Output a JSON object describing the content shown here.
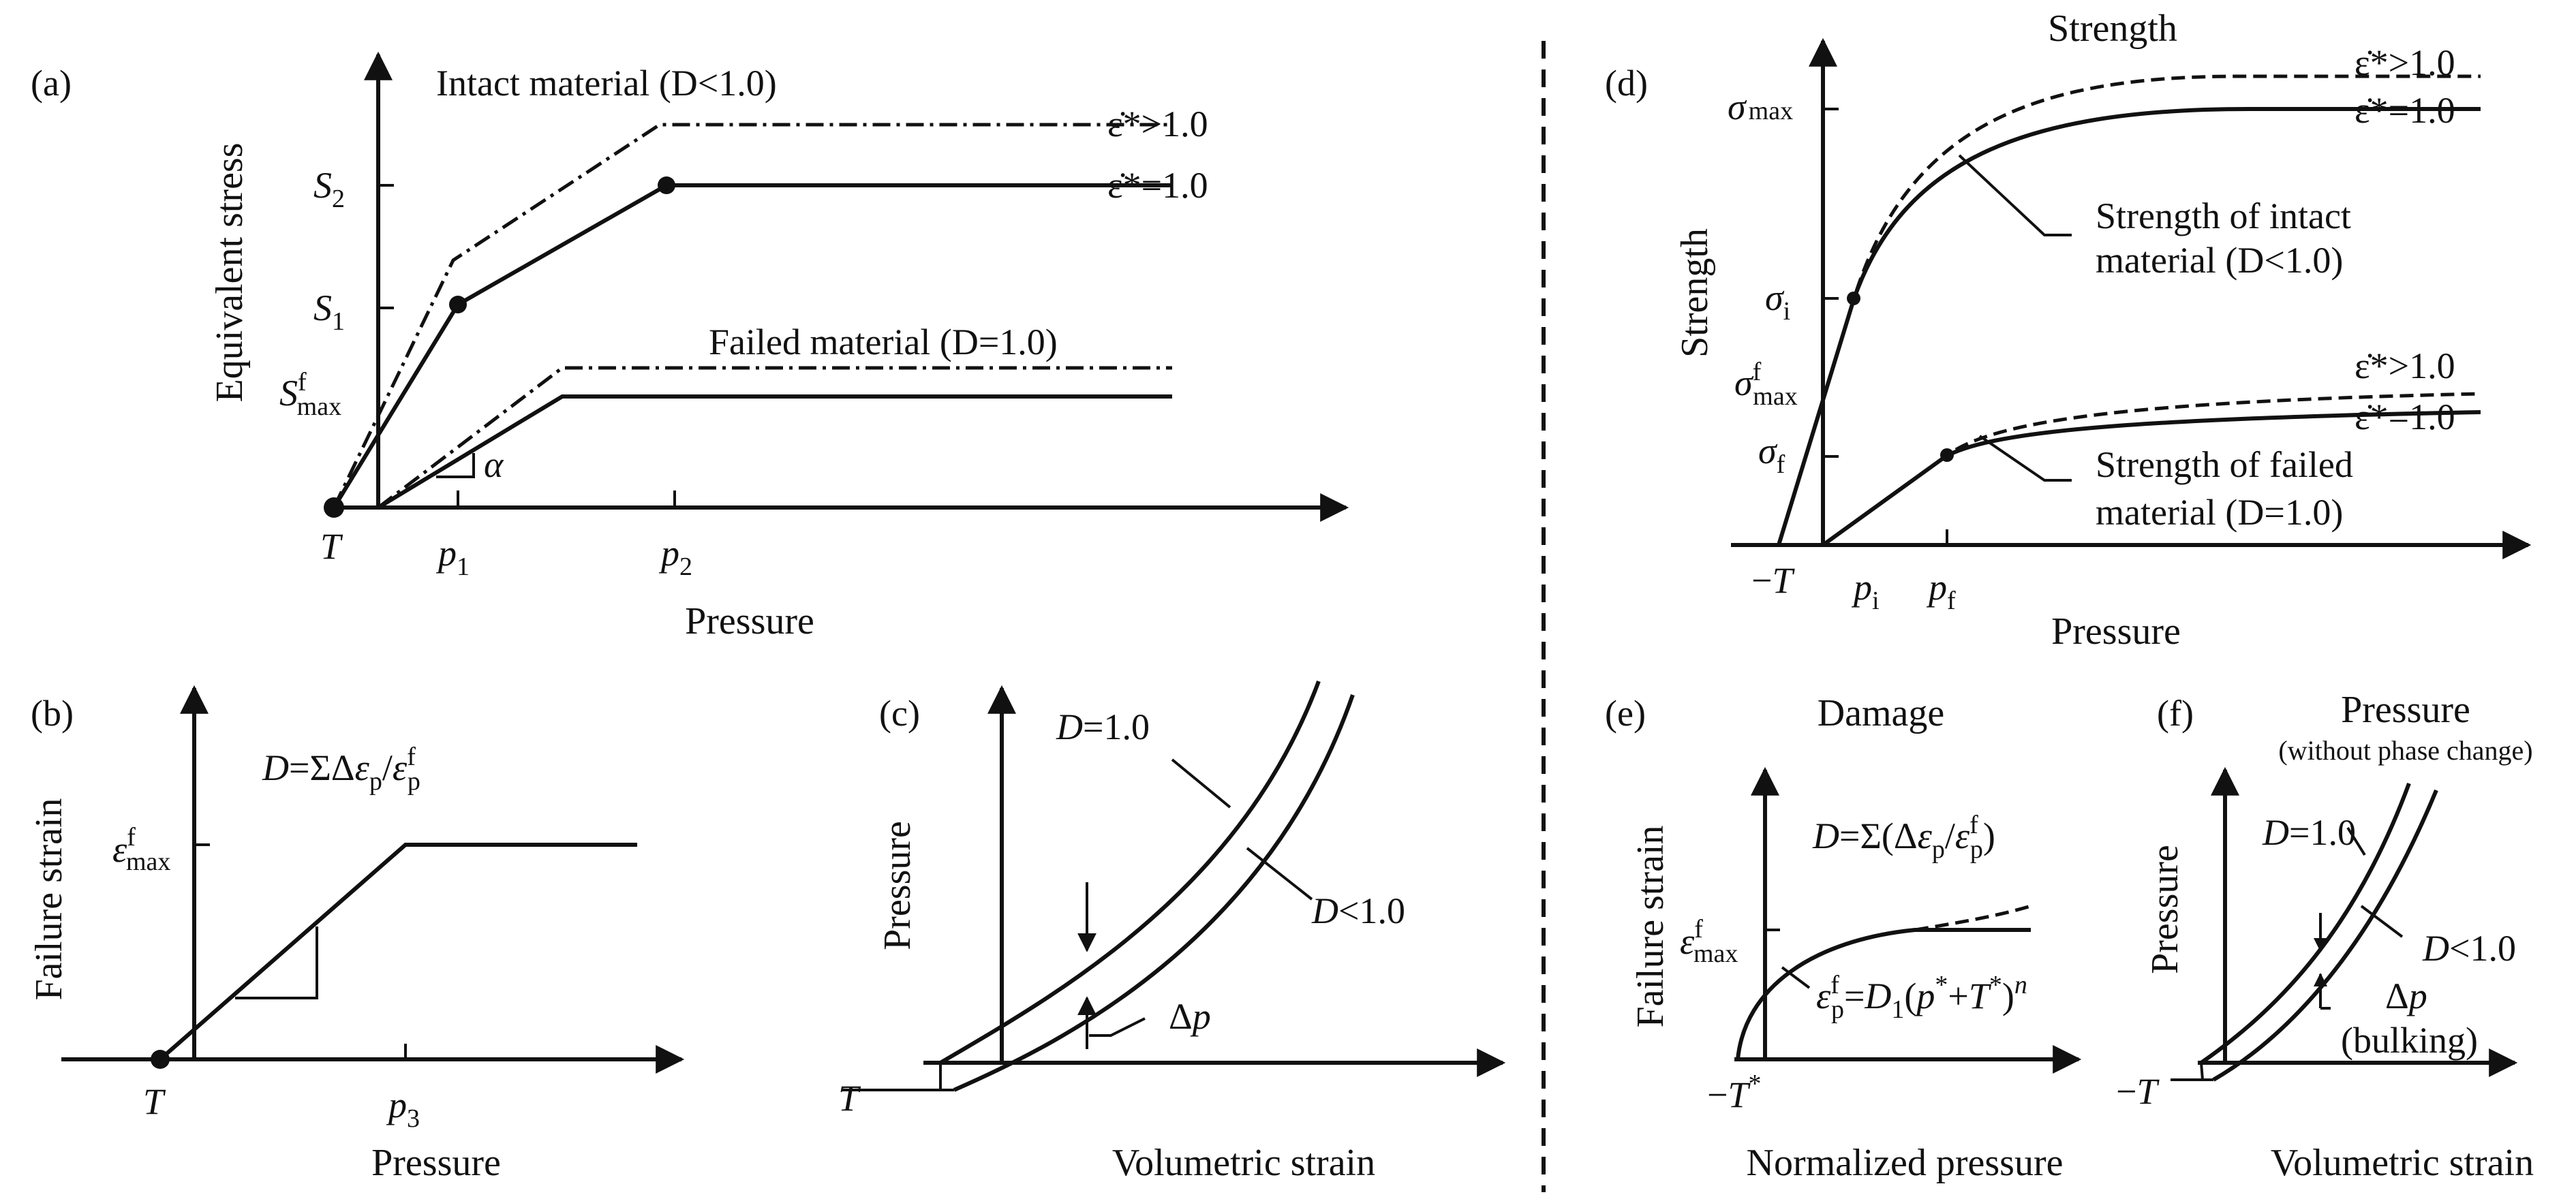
{
  "panel_a": {
    "tag": "(a)",
    "ylabel": "Equivalent stress",
    "xlabel": "Pressure",
    "intact_label": "Intact material (D<1.0)",
    "failed_label": "Failed material (D=1.0)",
    "rate_gt_label": "ε̇*>1.0",
    "rate_eq_label": "ε̇*=1.0",
    "S2": "S2",
    "S1": "S1",
    "Sfmax": "Sfmax",
    "T": "T",
    "p1": "p1",
    "p2": "p2",
    "alpha": "α"
  },
  "panel_b": {
    "tag": "(b)",
    "ylabel": "Failure strain",
    "xlabel": "Pressure",
    "equation": "D=ΣΔεp/εfp",
    "efmax": "εfmax",
    "T": "T",
    "p3": "p3"
  },
  "panel_c": {
    "tag": "(c)",
    "ylabel": "Pressure",
    "xlabel": "Volumetric strain",
    "D_eq": "D=1.0",
    "D_lt": "D<1.0",
    "dp": "Δp",
    "T": "T"
  },
  "panel_d": {
    "tag": "(d)",
    "title": "Strength",
    "ylabel": "Strength",
    "xlabel": "Pressure",
    "rate_gt_label": "ε̇*>1.0",
    "rate_eq_label": "ε̇*=1.0",
    "intact_label_1": "Strength of intact",
    "intact_label_2": "material (D<1.0)",
    "failed_label_1": "Strength of failed",
    "failed_label_2": "material (D=1.0)",
    "smax": "σmax",
    "si": "σi",
    "sfmax": "σfmax",
    "sf": "σf",
    "negT": "−T",
    "pi": "pi",
    "pf": "pf"
  },
  "panel_e": {
    "tag": "(e)",
    "title": "Damage",
    "ylabel": "Failure strain",
    "xlabel": "Normalized pressure",
    "equation": "D=Σ(Δεp/εfp)",
    "efmax": "εfmax",
    "curve_eq": "εfp=D1(p*+T*)n",
    "negT": "−T*"
  },
  "panel_f": {
    "tag": "(f)",
    "title": "Pressure",
    "subtitle": "(without phase change)",
    "ylabel": "Pressure",
    "xlabel": "Volumetric strain",
    "D_eq": "D=1.0",
    "D_lt": "D<1.0",
    "dp": "Δp",
    "bulking": "(bulking)",
    "negT": "−T"
  }
}
